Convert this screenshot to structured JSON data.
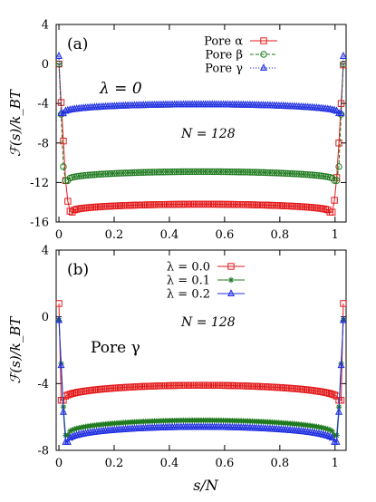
{
  "chart_data": [
    {
      "type": "line",
      "panel_label": "(a)",
      "annotations": [
        "λ = 0",
        "N = 128"
      ],
      "ylabel": "ℱ(s)/k_BT",
      "xlabel": "",
      "xlim": [
        -0.01,
        1.04
      ],
      "ylim": [
        -16,
        4
      ],
      "xticks": [
        0,
        0.2,
        0.4,
        0.6,
        0.8,
        1
      ],
      "xtick_labels": [
        "0",
        "0.2",
        "0.4",
        "0.6",
        "0.8",
        "1"
      ],
      "yticks": [
        -16,
        -12,
        -8,
        -4,
        0,
        4
      ],
      "ytick_labels": [
        "-16",
        "-12",
        "-8",
        "-4",
        "0",
        "4"
      ],
      "legend_position": "top-right",
      "series": [
        {
          "name": "Pore α",
          "color": "#e31a1c",
          "marker": "square",
          "dash": "solid",
          "ends": [
            0.0,
            -0.1
          ],
          "start_drop": [
            -3.9,
            -7.8,
            -11.8,
            -13.9,
            -14.9
          ],
          "plateau_edge": -15.0,
          "plateau_mid": -14.2,
          "end_rise": [
            -15.0,
            -13.8,
            -11.5,
            -8.0,
            -4.0
          ]
        },
        {
          "name": "Pore β",
          "color": "#1f7a1f",
          "marker": "circle",
          "dash": "dashed",
          "ends": [
            0.0,
            0.0
          ],
          "start_drop": [
            -5.1,
            -10.4,
            -11.8
          ],
          "plateau_edge": -11.8,
          "plateau_mid": -10.9,
          "end_rise": [
            -11.8,
            -10.4,
            -5.1
          ]
        },
        {
          "name": "Pore γ",
          "color": "#1f2fe0",
          "marker": "triangle",
          "dash": "dotted",
          "ends": [
            0.8,
            0.8
          ],
          "start_drop": [
            -5.0
          ],
          "plateau_edge": -5.0,
          "plateau_mid": -4.1,
          "end_rise": [
            -5.0
          ]
        }
      ]
    },
    {
      "type": "line",
      "panel_label": "(b)",
      "annotations": [
        "Pore γ",
        "N = 128"
      ],
      "ylabel": "ℱ(s)/k_BT",
      "xlabel": "s/N",
      "xlim": [
        -0.01,
        1.04
      ],
      "ylim": [
        -8,
        4
      ],
      "xticks": [
        0,
        0.2,
        0.4,
        0.6,
        0.8,
        1
      ],
      "xtick_labels": [
        "0",
        "0.2",
        "0.4",
        "0.6",
        "0.8",
        "1"
      ],
      "yticks": [
        -8,
        -4,
        0,
        4
      ],
      "ytick_labels": [
        "-8",
        "-4",
        "0",
        "4"
      ],
      "legend_position": "top-center",
      "series": [
        {
          "name": "λ = 0.0",
          "color": "#e31a1c",
          "marker": "square",
          "dash": "solid",
          "ends": [
            0.8,
            0.8
          ],
          "start_drop": [
            -5.0
          ],
          "plateau_edge": -5.0,
          "plateau_mid": -4.1,
          "end_rise": [
            -5.0
          ]
        },
        {
          "name": "λ = 0.1",
          "color": "#1f7a1f",
          "marker": "star",
          "dash": "solid",
          "ends": [
            -0.2,
            -0.2
          ],
          "start_drop": [
            -2.8,
            -5.4,
            -7.1
          ],
          "plateau_edge": -7.1,
          "plateau_mid": -6.2,
          "end_rise": [
            -7.1,
            -5.4,
            -2.8
          ]
        },
        {
          "name": "λ = 0.2",
          "color": "#1f2fe0",
          "marker": "triangle",
          "dash": "solid",
          "ends": [
            -0.2,
            -0.2
          ],
          "start_drop": [
            -2.9,
            -5.7,
            -7.5
          ],
          "plateau_edge": -7.5,
          "plateau_mid": -6.6,
          "end_rise": [
            -7.5,
            -5.7,
            -2.9
          ]
        }
      ]
    }
  ]
}
